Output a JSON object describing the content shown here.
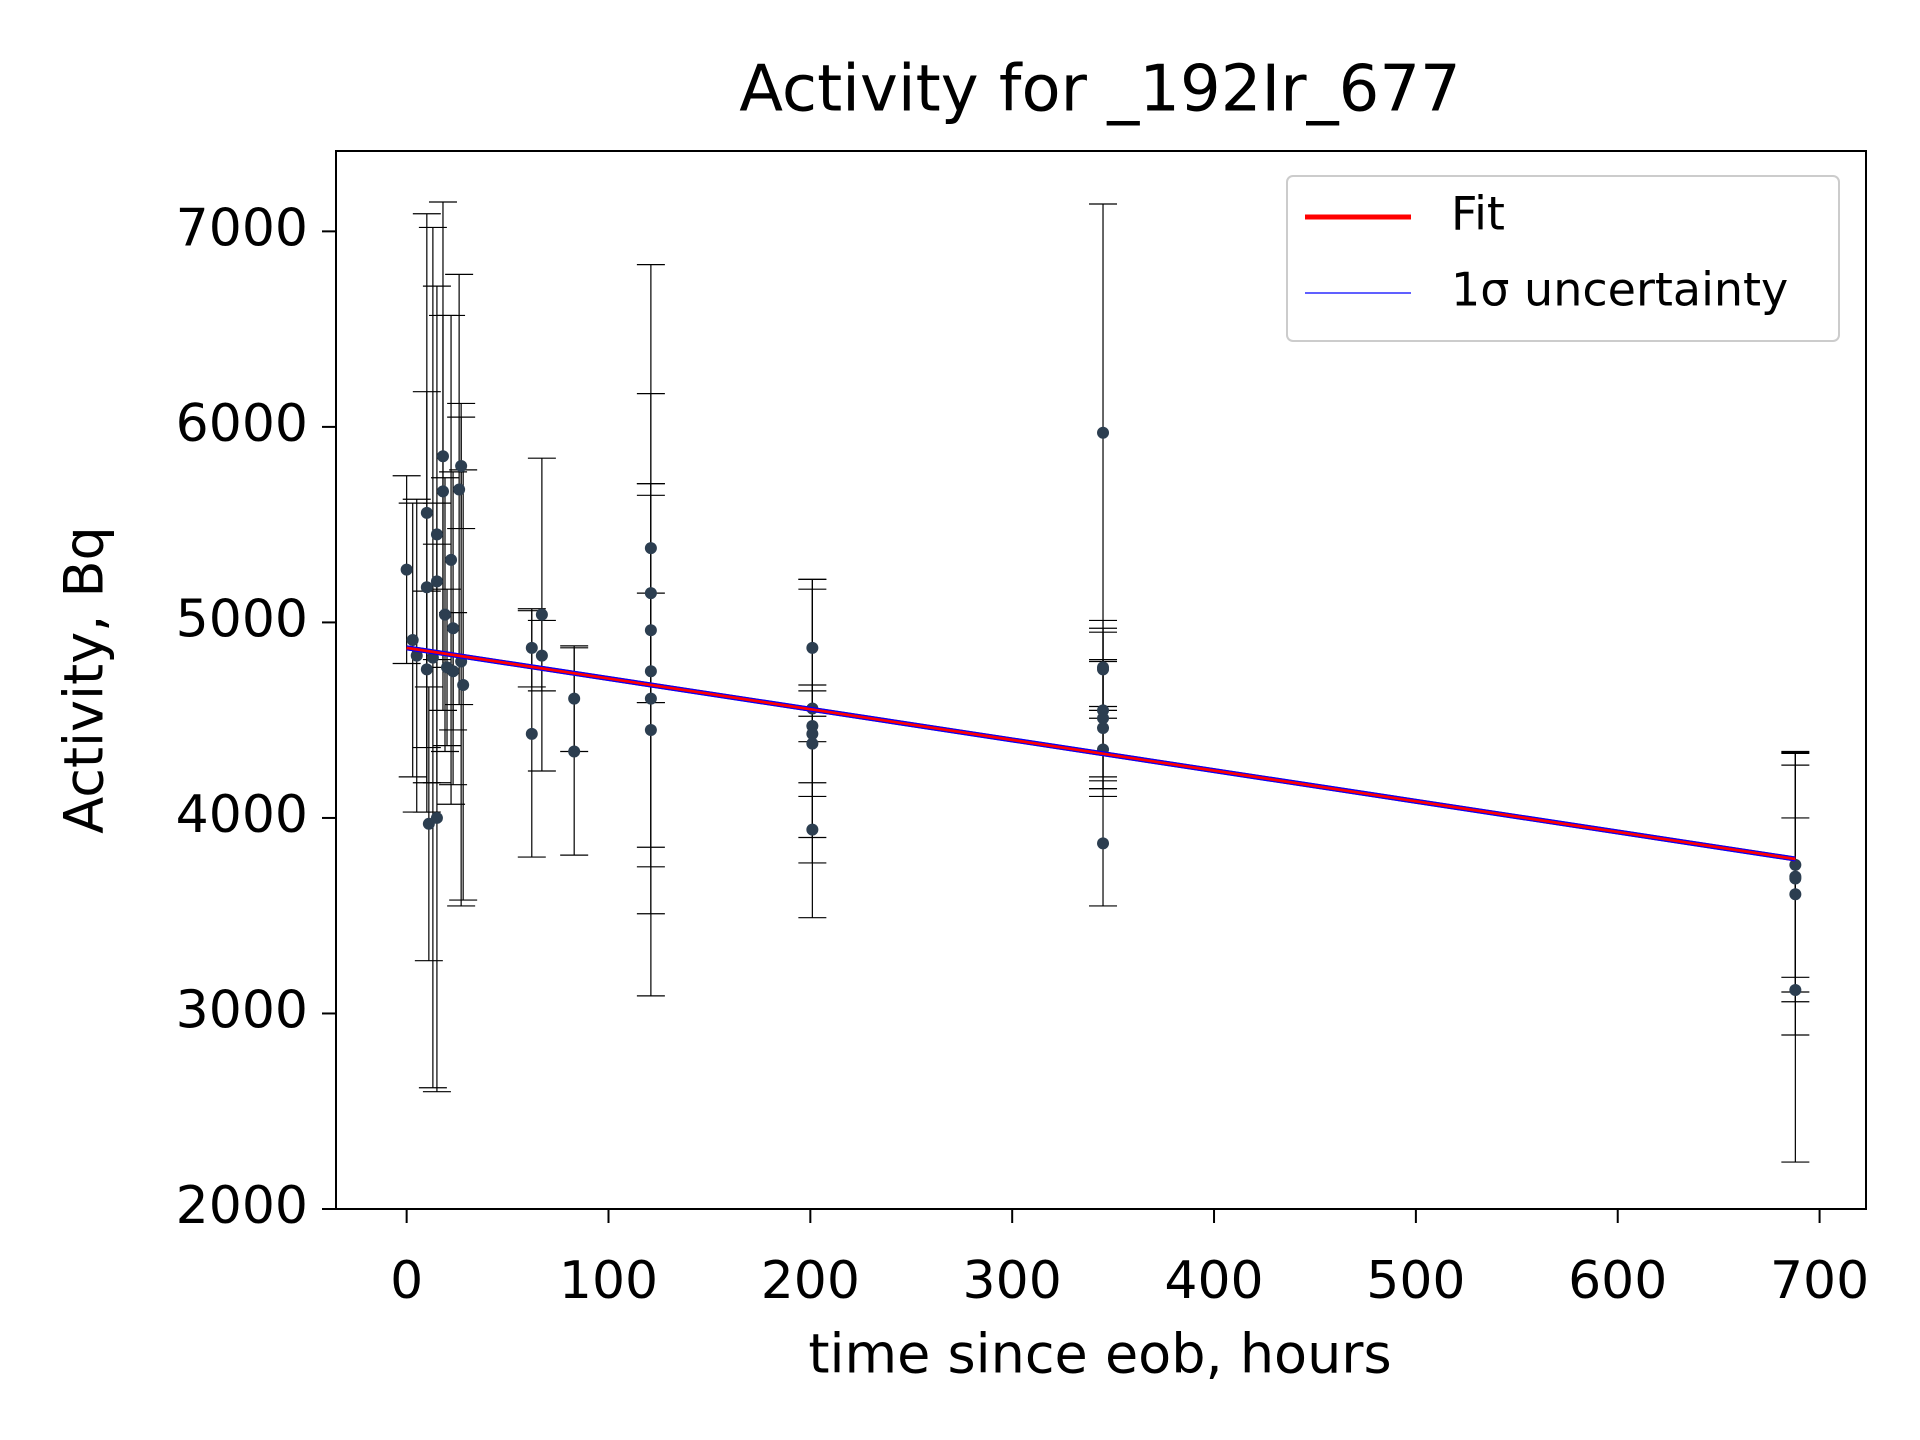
{
  "chart_data": {
    "type": "errorbar",
    "title": "Activity for _192Ir_677",
    "xlabel": "time since eob, hours",
    "ylabel": "Activity, Bq",
    "xlim": [
      -35,
      723
    ],
    "ylim": [
      2000,
      7411
    ],
    "xticks": [
      0,
      100,
      200,
      300,
      400,
      500,
      600,
      700
    ],
    "yticks": [
      2000,
      3000,
      4000,
      5000,
      6000,
      7000
    ],
    "legend": "upper right",
    "series": [
      {
        "name": "data",
        "color": "#2c3e50",
        "errcolor": "#000000",
        "x": [
          0,
          3,
          5,
          10,
          10,
          10,
          11,
          13,
          15,
          15,
          15,
          18,
          18,
          19,
          20,
          22,
          23,
          23,
          26,
          27,
          27,
          28,
          62,
          62,
          67,
          67,
          83,
          83,
          121,
          121,
          121,
          121,
          121,
          121,
          201,
          201,
          201,
          201,
          201,
          201,
          345,
          345,
          345,
          345,
          345,
          345,
          345,
          345,
          688,
          688,
          688,
          688,
          688
        ],
        "values": [
          5270,
          4910,
          4830,
          5560,
          4760,
          5180,
          3970,
          4820,
          5450,
          5210,
          4000,
          5850,
          5670,
          5040,
          4770,
          5320,
          4970,
          4750,
          5680,
          5800,
          4800,
          4680,
          4870,
          4430,
          5040,
          4830,
          4610,
          4340,
          5380,
          5150,
          4960,
          4750,
          4610,
          4450,
          4870,
          4560,
          4470,
          4430,
          4380,
          3940,
          5970,
          4770,
          4760,
          4550,
          4510,
          4460,
          4350,
          3870,
          3760,
          3700,
          3690,
          3610,
          3120
        ],
        "errors": [
          480,
          700,
          800,
          1530,
          400,
          1000,
          700,
          2200,
          1270,
          400,
          1400,
          1300,
          900,
          700,
          400,
          1250,
          800,
          300,
          1100,
          320,
          1250,
          1100,
          200,
          630,
          800,
          180,
          270,
          530,
          790,
          560,
          1870,
          900,
          1100,
          700,
          350,
          660,
          700,
          250,
          270,
          450,
          1170,
          200,
          250,
          400,
          300,
          350,
          200,
          320,
          575,
          640,
          580,
          720,
          880
        ]
      },
      {
        "name": "Fit",
        "color": "#ff0000",
        "x": [
          0,
          688
        ],
        "values": [
          4870,
          3790
        ]
      },
      {
        "name": "1σ uncertainty",
        "color": "#0000ff",
        "x": [
          0,
          688
        ],
        "lower": [
          4860,
          3780
        ],
        "upper": [
          4880,
          3800
        ]
      }
    ]
  }
}
